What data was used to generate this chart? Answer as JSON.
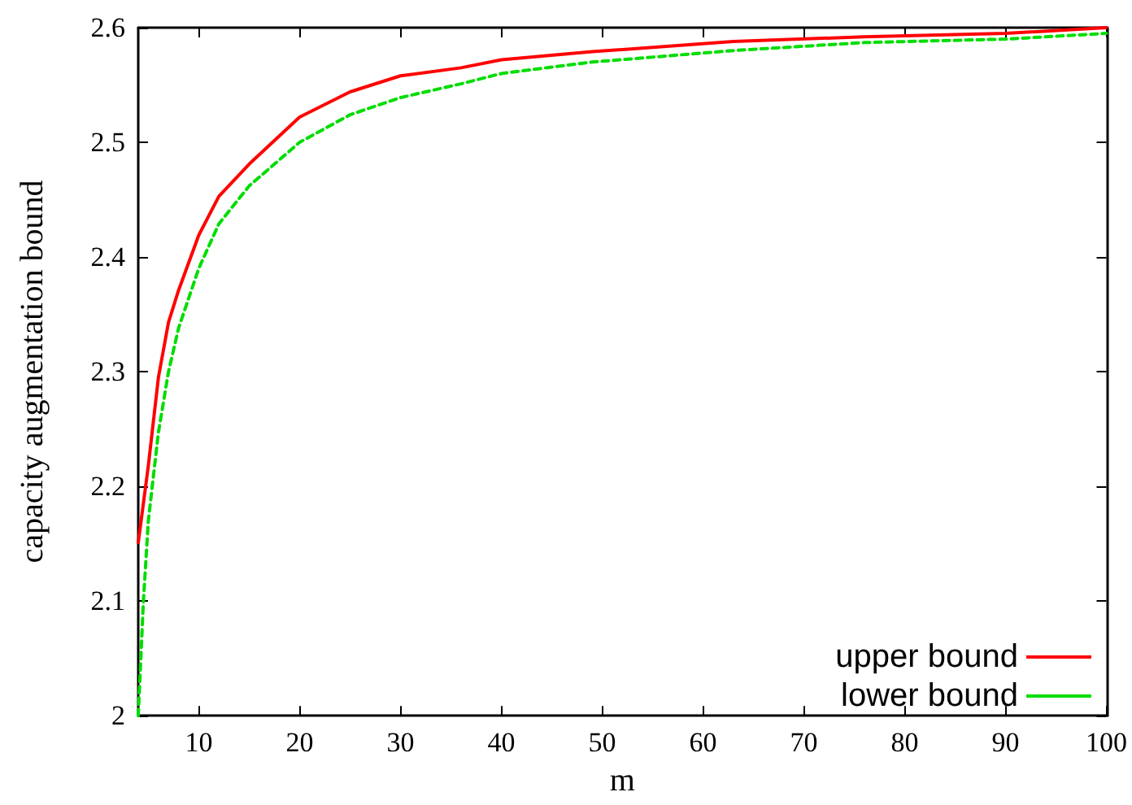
{
  "chart_data": {
    "type": "line",
    "xlabel": "m",
    "ylabel": "capacity augmentation bound",
    "xlim": [
      4,
      100
    ],
    "xticks": [
      10,
      20,
      30,
      40,
      50,
      60,
      70,
      80,
      90,
      100
    ],
    "ylim": [
      2,
      2.6
    ],
    "yticks": [
      2,
      2.1,
      2.2,
      2.3,
      2.4,
      2.5,
      2.6
    ],
    "grid": false,
    "legend": "bottom right",
    "marker": "none",
    "series": [
      {
        "name": "upper bound",
        "color": "#ff0000",
        "line_style": "solid",
        "x": [
          4,
          5,
          6,
          7,
          8,
          10,
          12,
          15,
          20,
          25,
          30,
          36,
          40,
          49,
          63,
          76,
          90,
          100
        ],
        "values": [
          2.151,
          2.218,
          2.295,
          2.343,
          2.371,
          2.419,
          2.453,
          2.481,
          2.522,
          2.544,
          2.558,
          2.565,
          2.572,
          2.579,
          2.588,
          2.592,
          2.595,
          2.6
        ]
      },
      {
        "name": "lower bound",
        "color": "#00dd00",
        "line_style": "dashed",
        "x": [
          4,
          4.5,
          5,
          6,
          7,
          8,
          10,
          12,
          15,
          20,
          25,
          30,
          36,
          40,
          49,
          63,
          76,
          90,
          100
        ],
        "values": [
          2.0,
          2.098,
          2.17,
          2.247,
          2.3,
          2.338,
          2.39,
          2.429,
          2.462,
          2.5,
          2.524,
          2.539,
          2.551,
          2.56,
          2.57,
          2.58,
          2.587,
          2.59,
          2.595
        ]
      }
    ]
  }
}
